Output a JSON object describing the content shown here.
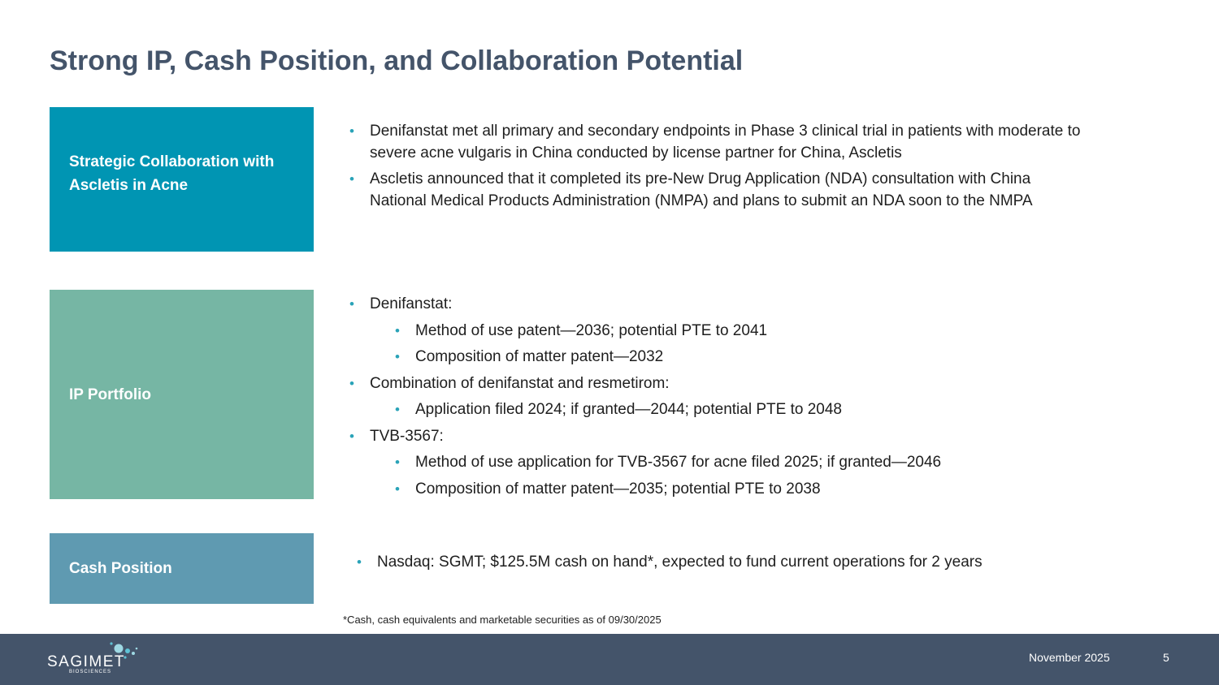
{
  "title": "Strong IP, Cash Position, and Collaboration Potential",
  "sections": {
    "collaboration": {
      "label": "Strategic Collaboration with Ascletis in Acne",
      "bullets": [
        "Denifanstat met all primary and secondary endpoints in Phase 3 clinical trial in patients with moderate to severe acne vulgaris in China conducted by license partner for China, Ascletis",
        "Ascletis announced that it completed its pre-New Drug Application (NDA) consultation with China National Medical Products Administration (NMPA) and plans to submit an NDA soon to the NMPA"
      ]
    },
    "ip": {
      "label": "IP Portfolio",
      "groups": [
        {
          "heading": "Denifanstat:",
          "items": [
            "Method of use patent—2036; potential PTE to 2041",
            "Composition of matter patent—2032"
          ]
        },
        {
          "heading": "Combination of denifanstat and resmetirom:",
          "items": [
            "Application filed 2024; if granted—2044; potential PTE to 2048"
          ]
        },
        {
          "heading": "TVB-3567:",
          "items": [
            "Method of use application for TVB-3567 for acne filed 2025; if granted—2046",
            "Composition of matter patent—2035; potential PTE to 2038"
          ]
        }
      ]
    },
    "cash": {
      "label": "Cash Position",
      "bullet": "Nasdaq: SGMT; $125.5M cash on hand*, expected to fund current operations for 2 years"
    }
  },
  "footnote": "*Cash, cash equivalents and marketable securities as of 09/30/2025",
  "footer": {
    "logo_text": "SAGIMET",
    "logo_subtext": "BIOSCIENCES",
    "date": "November 2025",
    "page_number": "5"
  },
  "colors": {
    "title": "#44546a",
    "collaboration_box": "#0095b3",
    "ip_box": "#76b6a4",
    "cash_box": "#5f9ab1",
    "footer_bar": "#44546a",
    "bullet": "#2aa3b8"
  },
  "icons": {
    "logo": "sagimet-logo-dots"
  }
}
